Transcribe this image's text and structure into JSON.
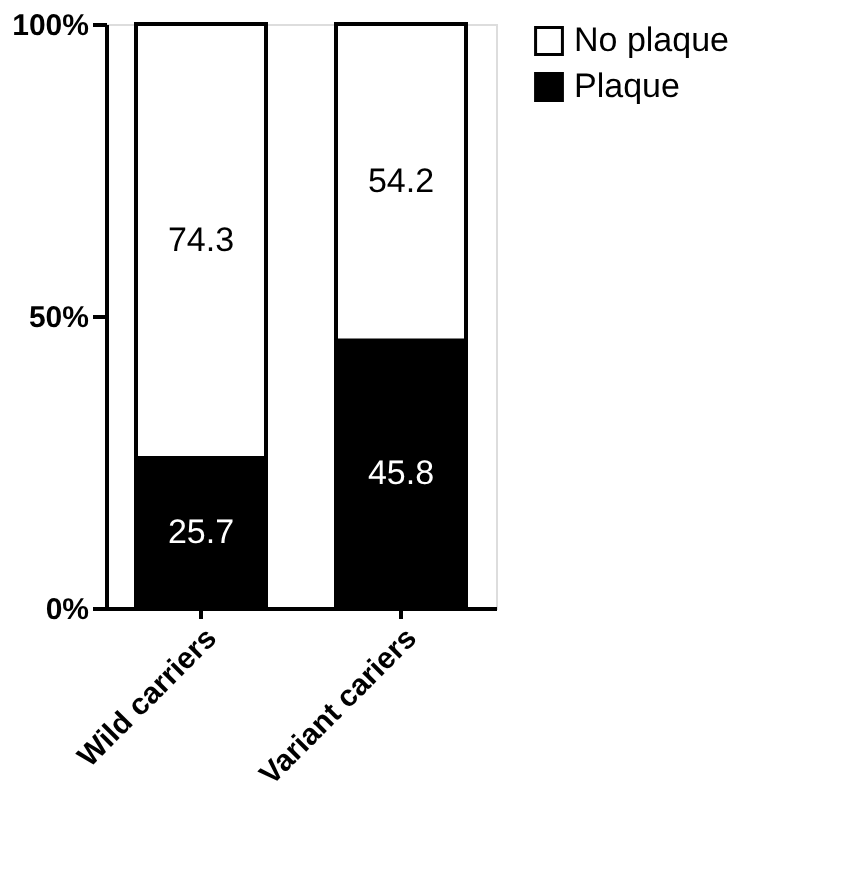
{
  "chart_data": {
    "type": "bar",
    "stacked": true,
    "categories": [
      "Wild carriers",
      "Variant cariers"
    ],
    "series": [
      {
        "name": "Plaque",
        "color": "#000000",
        "values": [
          25.7,
          45.8
        ]
      },
      {
        "name": "No plaque",
        "color": "#ffffff",
        "values": [
          74.3,
          54.2
        ]
      }
    ],
    "ylim": [
      0,
      100
    ],
    "yticks": [
      {
        "value": 0,
        "label": "0%"
      },
      {
        "value": 50,
        "label": "50%"
      },
      {
        "value": 100,
        "label": "100%"
      }
    ],
    "data_labels": true,
    "grid": false,
    "legend": "right"
  }
}
